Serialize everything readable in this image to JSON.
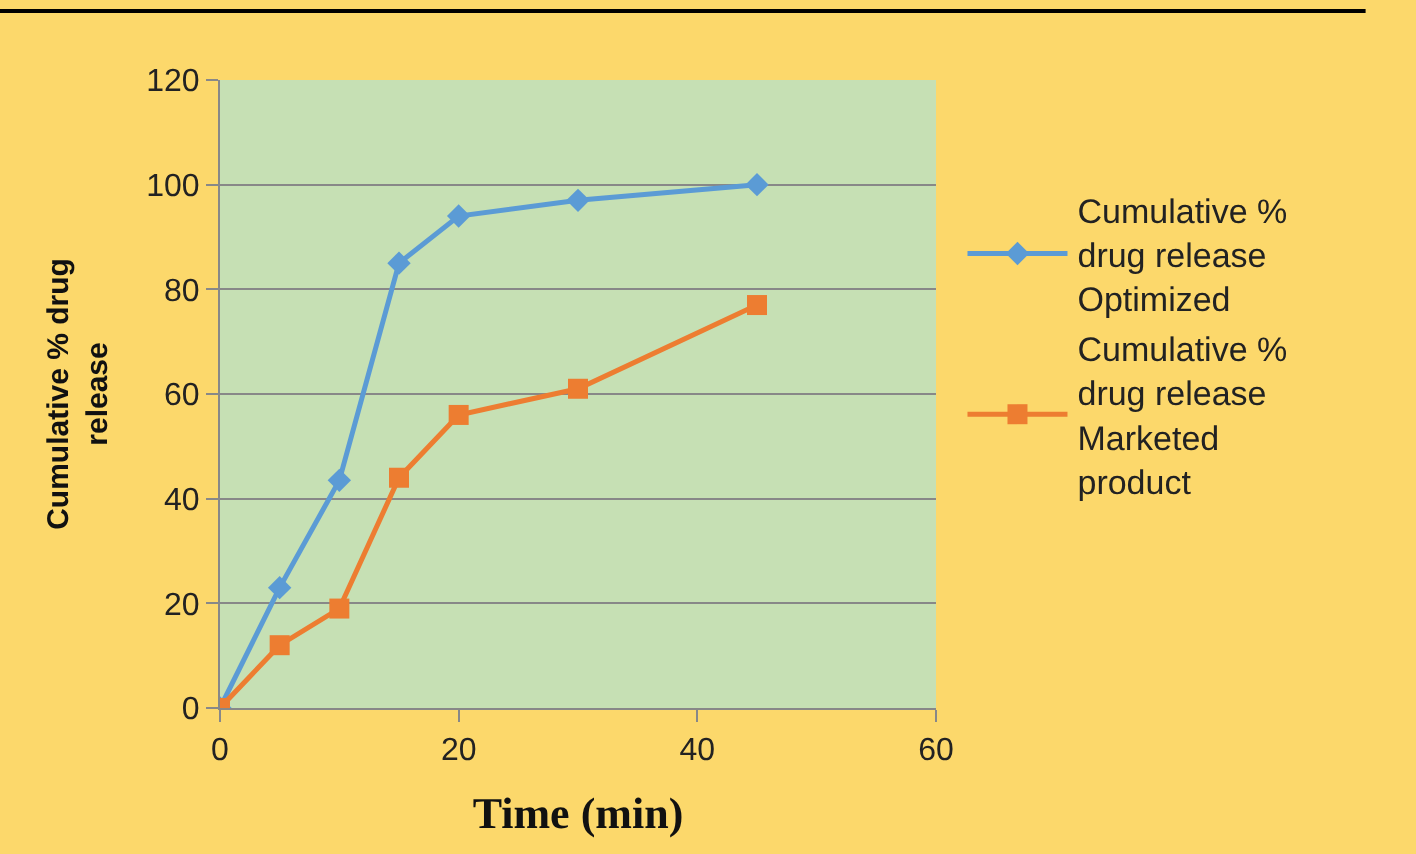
{
  "chart_data": {
    "type": "line",
    "xlabel": "Time (min)",
    "ylabel": "Cumulative % drug release",
    "x": [
      0,
      5,
      10,
      15,
      20,
      30,
      45
    ],
    "series": [
      {
        "name": "Cumulative % drug release Optimized",
        "color": "#5b9bd5",
        "marker": "diamond",
        "values": [
          0,
          23,
          43.5,
          85,
          94,
          97,
          100
        ]
      },
      {
        "name": "Cumulative % drug release Marketed product",
        "color": "#ed7d31",
        "marker": "square",
        "values": [
          0,
          12,
          19,
          44,
          56,
          61,
          77
        ]
      }
    ],
    "xlim": [
      0,
      60
    ],
    "xticks": [
      0,
      20,
      40,
      60
    ],
    "ylim": [
      0,
      120
    ],
    "yticks": [
      0,
      20,
      40,
      60,
      80,
      100,
      120
    ],
    "grid": "y",
    "legend": "right",
    "line_style": "solid"
  }
}
